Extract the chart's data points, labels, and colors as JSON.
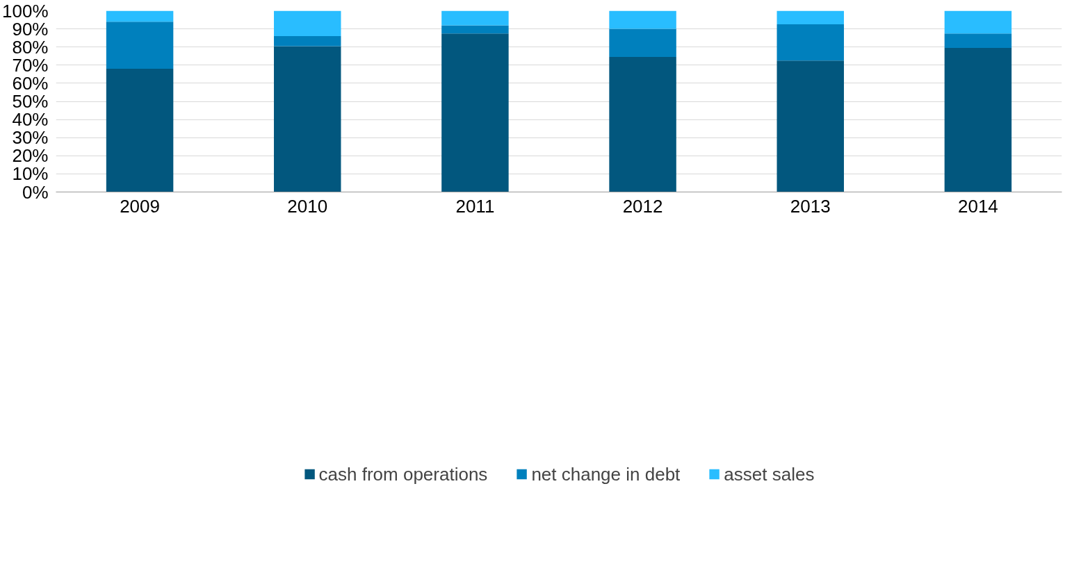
{
  "chart_data": {
    "type": "bar",
    "stacked": true,
    "categories": [
      "2009",
      "2010",
      "2011",
      "2012",
      "2013",
      "2014"
    ],
    "series": [
      {
        "name": "cash from operations",
        "color": "#02577e",
        "values": [
          68,
          80.5,
          87.5,
          74.5,
          72.5,
          79.5
        ]
      },
      {
        "name": "net change in debt",
        "color": "#0080bd",
        "values": [
          26,
          5.5,
          4.5,
          15.5,
          20,
          8
        ]
      },
      {
        "name": "asset sales",
        "color": "#29bdff",
        "values": [
          6,
          14,
          8,
          10,
          7.5,
          12.5
        ]
      }
    ],
    "ylim": [
      0,
      100
    ],
    "yticks": [
      {
        "value": 0,
        "label": "0%"
      },
      {
        "value": 10,
        "label": "10%"
      },
      {
        "value": 20,
        "label": "20%"
      },
      {
        "value": 30,
        "label": "30%"
      },
      {
        "value": 40,
        "label": "40%"
      },
      {
        "value": 50,
        "label": "50%"
      },
      {
        "value": 60,
        "label": "60%"
      },
      {
        "value": 70,
        "label": "70%"
      },
      {
        "value": 80,
        "label": "80%"
      },
      {
        "value": 90,
        "label": "90%"
      },
      {
        "value": 100,
        "label": "100%"
      }
    ],
    "grid": "y",
    "legend": "bottom"
  }
}
